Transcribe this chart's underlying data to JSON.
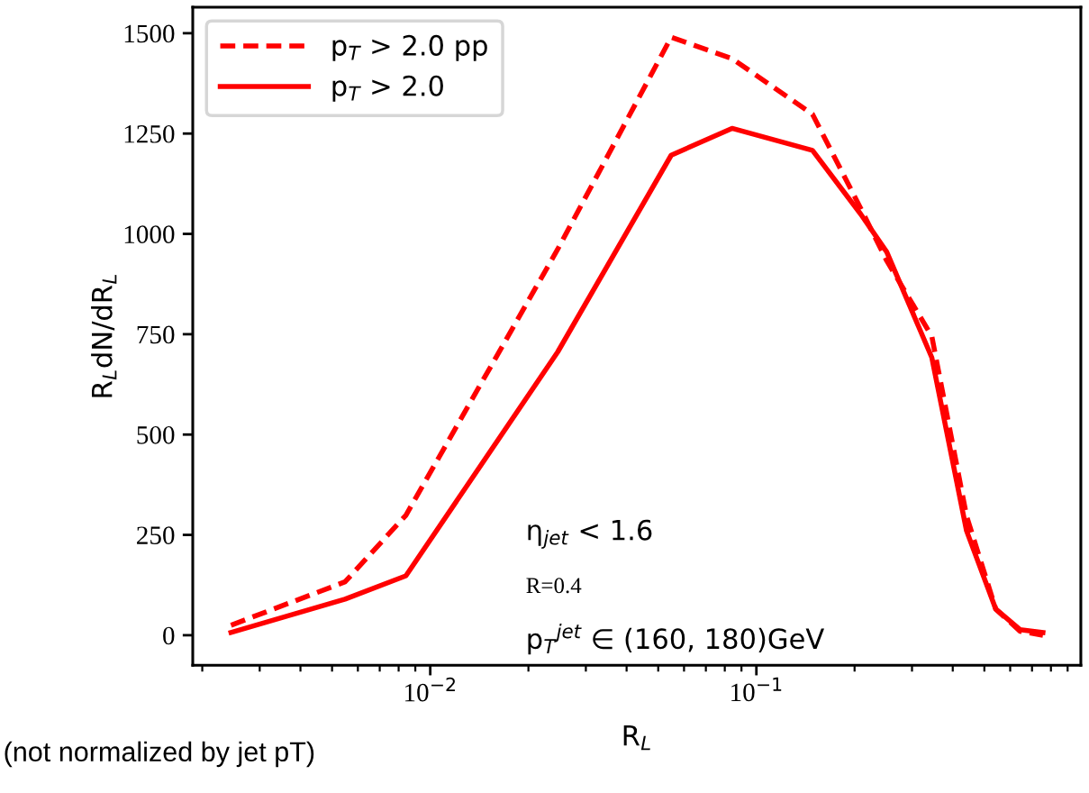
{
  "chart_data": {
    "type": "line",
    "xlabel": "R$_{L}$",
    "ylabel": "R$_{L}$dN/dR$_{L}$",
    "x": [
      0.00245,
      0.00548,
      0.00842,
      0.0246,
      0.0548,
      0.0842,
      0.1486,
      0.209,
      0.251,
      0.345,
      0.441,
      0.542,
      0.643,
      0.756
    ],
    "series": [
      {
        "name": "p$_{T}$ > 2.0 pp",
        "color": "#ff0000",
        "line_style": "dashed",
        "values": [
          25,
          133,
          299,
          962,
          1490,
          1437,
          1298,
          1063,
          933,
          745,
          297,
          65,
          10,
          0
        ]
      },
      {
        "name": "p$_{T}$ > 2.0",
        "color": "#ff0000",
        "line_style": "solid",
        "values": [
          7,
          90,
          148,
          706,
          1196,
          1263,
          1208,
          1049,
          955,
          692,
          260,
          65,
          14,
          7
        ]
      }
    ],
    "log": "x",
    "xlim": [
      0.00187,
      0.988
    ],
    "xticks": [
      {
        "value": 0.01,
        "label": "10$^{−2}$"
      },
      {
        "value": 0.1,
        "label": "10$^{−1}$"
      }
    ],
    "ylim": [
      -75,
      1565
    ],
    "yticks": [
      0,
      250,
      500,
      750,
      1000,
      1250,
      1500
    ],
    "grid": false,
    "legend": "top left",
    "annotations": [
      "η$_{jet}$ < 1.6",
      "R=0.4",
      "p$_{T}$$^{jet}$ ∈ (160, 180)GeV",
      "(not normalized by jet pT)"
    ]
  }
}
